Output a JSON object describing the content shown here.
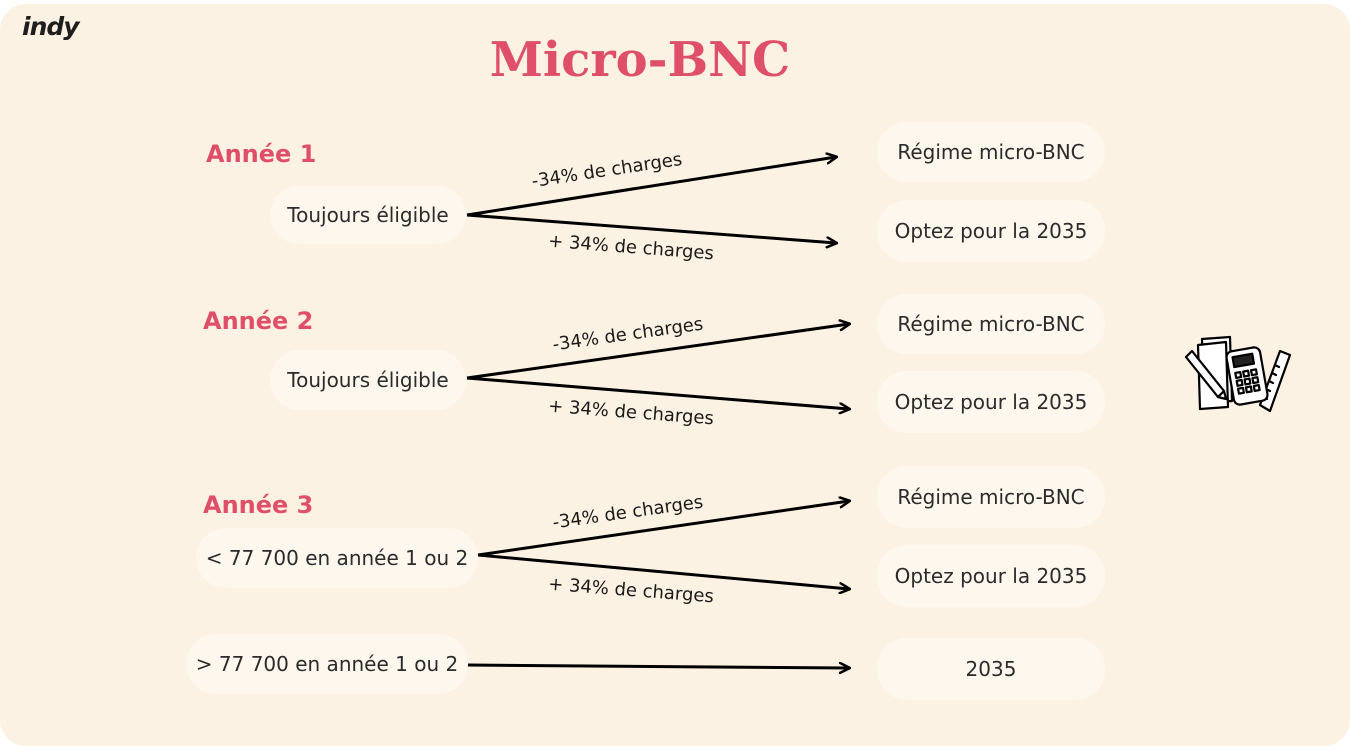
{
  "logo": "indy",
  "title": "Micro-BNC",
  "colors": {
    "accent": "#e04f6a",
    "background": "#fcf2e3",
    "pill": "#fdf7ee"
  },
  "rows": [
    {
      "year": "Année 1",
      "source": "Toujours éligible",
      "up_label": "-34% de charges",
      "down_label": "+ 34% de charges",
      "target_up": "Régime micro-BNC",
      "target_down": "Optez pour la 2035"
    },
    {
      "year": "Année 2",
      "source": "Toujours éligible",
      "up_label": "-34% de charges",
      "down_label": "+ 34% de charges",
      "target_up": "Régime micro-BNC",
      "target_down": "Optez pour la 2035"
    },
    {
      "year": "Année 3",
      "source": "< 77 700 en année 1 ou 2",
      "up_label": "-34% de charges",
      "down_label": "+ 34% de charges",
      "target_up": "Régime micro-BNC",
      "target_down": "Optez pour la 2035"
    }
  ],
  "last": {
    "source": "> 77 700 en année 1 ou 2",
    "target": "2035"
  },
  "icon": "calculator-stationery-icon"
}
